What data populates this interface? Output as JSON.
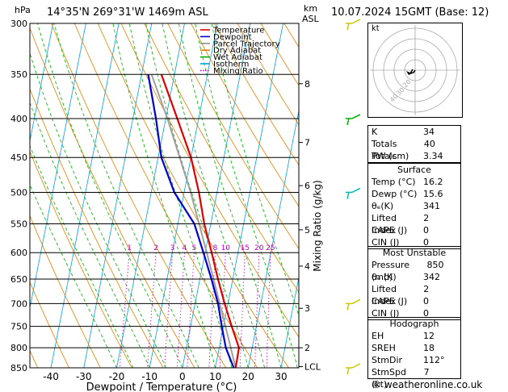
{
  "header": {
    "hpa_label": "hPa",
    "location": "14°35'N  269°31'W  1469m  ASL",
    "km_label": "km",
    "asl_label": "ASL",
    "datetime": "10.07.2024  15GMT  (Base: 12)"
  },
  "legend": {
    "items": [
      {
        "label": "Temperature",
        "color": "#e00000",
        "style": "solid"
      },
      {
        "label": "Dewpoint",
        "color": "#0000d0",
        "style": "solid"
      },
      {
        "label": "Parcel Trajectory",
        "color": "#909090",
        "style": "solid"
      },
      {
        "label": "Dry Adiabat",
        "color": "#e08000",
        "style": "solid"
      },
      {
        "label": "Wet Adiabat",
        "color": "#00b000",
        "style": "solid"
      },
      {
        "label": "Isotherm",
        "color": "#00a0e0",
        "style": "solid"
      },
      {
        "label": "Mixing Ratio",
        "color": "#c000c0",
        "style": "dotted"
      }
    ]
  },
  "chart_data": {
    "type": "line",
    "xlabel": "Dewpoint / Temperature (°C)",
    "ylabel": "Mixing Ratio (g/kg)",
    "pressure_ticks": [
      300,
      350,
      400,
      450,
      500,
      550,
      600,
      650,
      700,
      750,
      800,
      850
    ],
    "temp_ticks": [
      -40,
      -30,
      -20,
      -10,
      0,
      10,
      20,
      30
    ],
    "km_ticks": [
      {
        "label": "8",
        "p": 360
      },
      {
        "label": "7",
        "p": 430
      },
      {
        "label": "6",
        "p": 490
      },
      {
        "label": "5",
        "p": 560
      },
      {
        "label": "4",
        "p": 625
      },
      {
        "label": "3",
        "p": 710
      },
      {
        "label": "2",
        "p": 800
      },
      {
        "label": "LCL",
        "p": 847
      }
    ],
    "mixing_ratio_labels": [
      "1",
      "2",
      "3",
      "4",
      "5",
      "8",
      "10",
      "15",
      "20",
      "25"
    ],
    "mixing_ratio_values": [
      1,
      2,
      3,
      4,
      5,
      8,
      10,
      15,
      20,
      25
    ],
    "temperature": [
      {
        "p": 850,
        "t": 16.2
      },
      {
        "p": 800,
        "t": 16.0
      },
      {
        "p": 750,
        "t": 12.5
      },
      {
        "p": 700,
        "t": 9.0
      },
      {
        "p": 650,
        "t": 5.5
      },
      {
        "p": 600,
        "t": 2.0
      },
      {
        "p": 550,
        "t": -2.0
      },
      {
        "p": 500,
        "t": -5.5
      },
      {
        "p": 450,
        "t": -10.0
      },
      {
        "p": 400,
        "t": -16.5
      },
      {
        "p": 350,
        "t": -24.0
      }
    ],
    "dewpoint": [
      {
        "p": 850,
        "t": 15.6
      },
      {
        "p": 800,
        "t": 12.0
      },
      {
        "p": 750,
        "t": 9.5
      },
      {
        "p": 700,
        "t": 7.0
      },
      {
        "p": 650,
        "t": 3.5
      },
      {
        "p": 600,
        "t": -0.5
      },
      {
        "p": 550,
        "t": -5.0
      },
      {
        "p": 500,
        "t": -13.0
      },
      {
        "p": 450,
        "t": -19.0
      },
      {
        "p": 400,
        "t": -23.0
      },
      {
        "p": 350,
        "t": -28.0
      }
    ],
    "parcel": [
      {
        "p": 850,
        "t": 16.2
      },
      {
        "p": 800,
        "t": 13.5
      },
      {
        "p": 700,
        "t": 7.5
      },
      {
        "p": 600,
        "t": 0.5
      },
      {
        "p": 500,
        "t": -8.0
      },
      {
        "p": 400,
        "t": -19.5
      },
      {
        "p": 350,
        "t": -27.0
      }
    ],
    "wind_barbs": [
      {
        "p": 300,
        "color": "#c8c800"
      },
      {
        "p": 400,
        "color": "#00b000"
      },
      {
        "p": 500,
        "color": "#00b8b8"
      },
      {
        "p": 700,
        "color": "#c8c800"
      },
      {
        "p": 850,
        "color": "#c8c800"
      }
    ]
  },
  "hodograph": {
    "unit_label": "kt",
    "ring_labels": [
      "40",
      "30",
      "20"
    ]
  },
  "indices": {
    "rows": [
      {
        "label": "K",
        "value": "34"
      },
      {
        "label": "Totals Totals",
        "value": "40"
      },
      {
        "label": "PW (cm)",
        "value": "3.34"
      }
    ]
  },
  "surface": {
    "title": "Surface",
    "rows": [
      {
        "label": "Temp (°C)",
        "value": "16.2"
      },
      {
        "label": "Dewp (°C)",
        "value": "15.6"
      },
      {
        "label": "θₑ(K)",
        "value": "341"
      },
      {
        "label": "Lifted Index",
        "value": "2"
      },
      {
        "label": "CAPE (J)",
        "value": "0"
      },
      {
        "label": "CIN (J)",
        "value": "0"
      }
    ]
  },
  "most_unstable": {
    "title": "Most Unstable",
    "rows": [
      {
        "label": "Pressure (mb)",
        "value": "850"
      },
      {
        "label": "θₑ (K)",
        "value": "342"
      },
      {
        "label": "Lifted Index",
        "value": "2"
      },
      {
        "label": "CAPE (J)",
        "value": "0"
      },
      {
        "label": "CIN (J)",
        "value": "0"
      }
    ]
  },
  "hodograph_table": {
    "title": "Hodograph",
    "rows": [
      {
        "label": "EH",
        "value": "12"
      },
      {
        "label": "SREH",
        "value": "18"
      },
      {
        "label": "StmDir",
        "value": "112°"
      },
      {
        "label": "StmSpd (kt)",
        "value": "7"
      }
    ]
  },
  "footer": {
    "text": "© weatheronline.co.uk"
  }
}
